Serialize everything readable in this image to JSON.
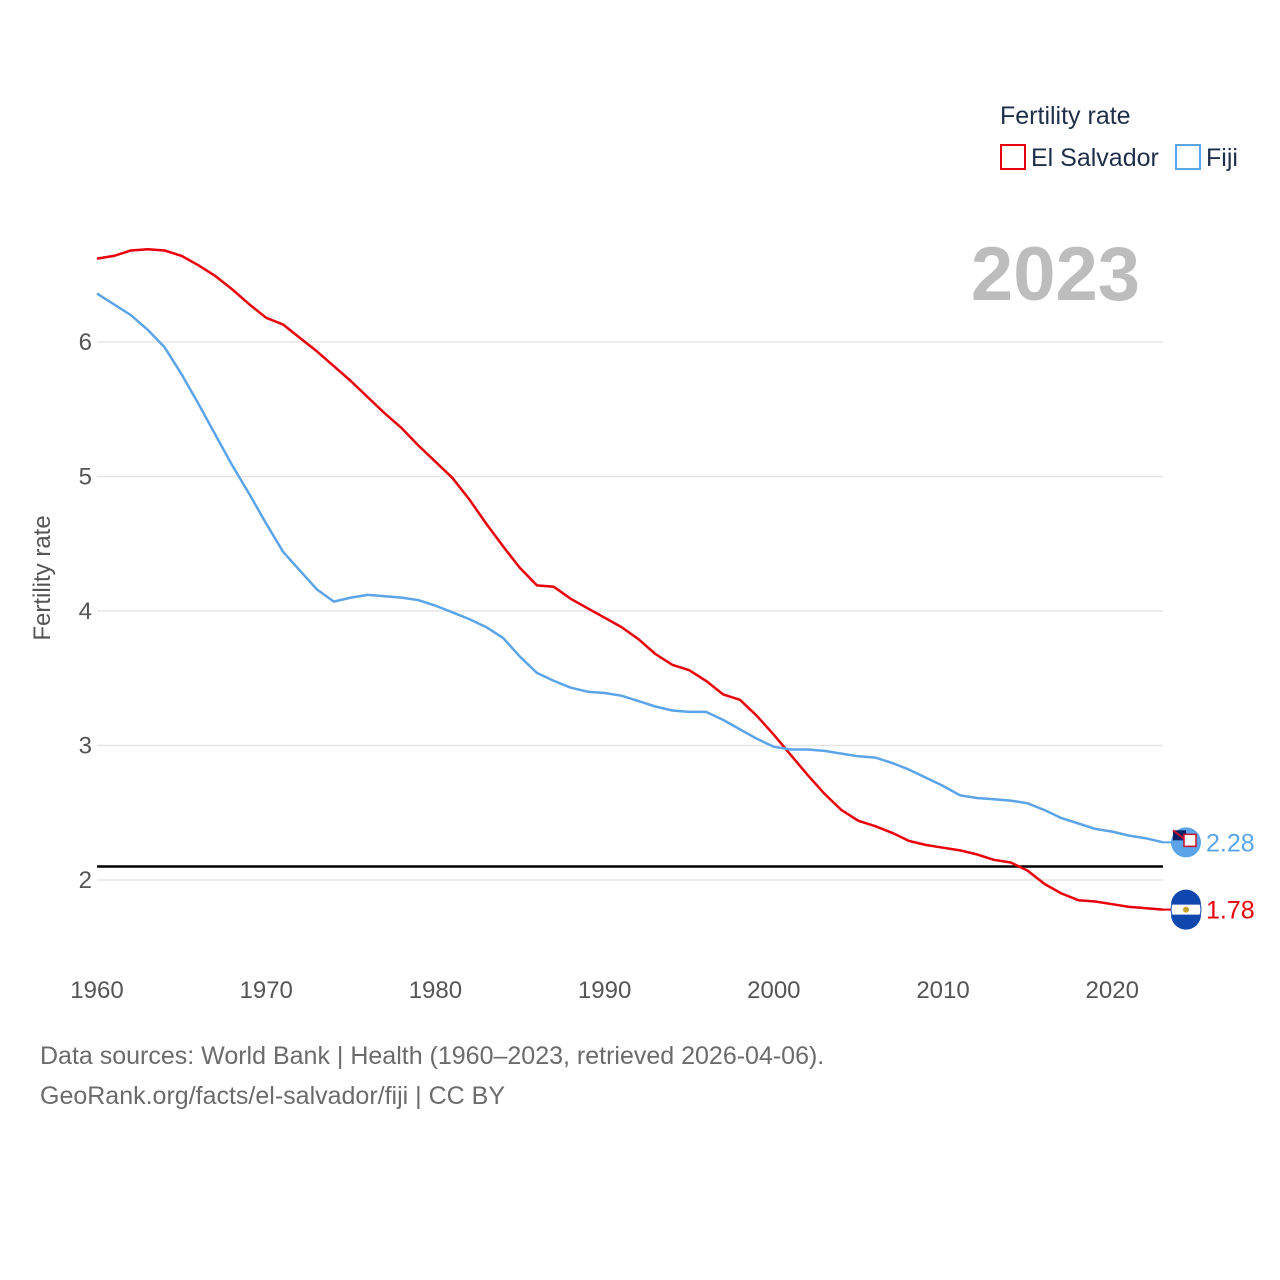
{
  "chart_data": {
    "type": "line",
    "title": "Fertility rate",
    "ylabel": "Fertility rate",
    "xlabel": "",
    "year_label": "2023",
    "xlim": [
      1960,
      2023
    ],
    "ylim": [
      1.5,
      6.8
    ],
    "x_ticks": [
      1960,
      1970,
      1980,
      1990,
      2000,
      2010,
      2020
    ],
    "y_ticks": [
      2,
      3,
      4,
      5,
      6
    ],
    "reference_line": 2.1,
    "grid": true,
    "legend": {
      "title": "Fertility rate",
      "position": "top-right"
    },
    "x": [
      1960,
      1961,
      1962,
      1963,
      1964,
      1965,
      1966,
      1967,
      1968,
      1969,
      1970,
      1971,
      1972,
      1973,
      1974,
      1975,
      1976,
      1977,
      1978,
      1979,
      1980,
      1981,
      1982,
      1983,
      1984,
      1985,
      1986,
      1987,
      1988,
      1989,
      1990,
      1991,
      1992,
      1993,
      1994,
      1995,
      1996,
      1997,
      1998,
      1999,
      2000,
      2001,
      2002,
      2003,
      2004,
      2005,
      2006,
      2007,
      2008,
      2009,
      2010,
      2011,
      2012,
      2013,
      2014,
      2015,
      2016,
      2017,
      2018,
      2019,
      2020,
      2021,
      2022,
      2023
    ],
    "series": [
      {
        "name": "El Salvador",
        "color": "#e8000b",
        "end_label": "1.78",
        "values": [
          6.62,
          6.64,
          6.68,
          6.69,
          6.68,
          6.64,
          6.57,
          6.49,
          6.39,
          6.28,
          6.18,
          6.13,
          6.03,
          5.93,
          5.82,
          5.71,
          5.59,
          5.47,
          5.36,
          5.23,
          5.11,
          4.99,
          4.83,
          4.65,
          4.48,
          4.32,
          4.19,
          4.18,
          4.09,
          4.02,
          3.95,
          3.88,
          3.79,
          3.68,
          3.6,
          3.56,
          3.48,
          3.38,
          3.34,
          3.22,
          3.08,
          2.93,
          2.78,
          2.64,
          2.52,
          2.44,
          2.4,
          2.35,
          2.29,
          2.26,
          2.24,
          2.22,
          2.19,
          2.15,
          2.13,
          2.07,
          1.97,
          1.9,
          1.85,
          1.84,
          1.82,
          1.8,
          1.79,
          1.78
        ]
      },
      {
        "name": "Fiji",
        "color": "#5ba4e8",
        "end_label": "2.28",
        "values": [
          6.36,
          6.28,
          6.2,
          6.09,
          5.96,
          5.76,
          5.54,
          5.31,
          5.08,
          4.87,
          4.65,
          4.44,
          4.3,
          4.16,
          4.07,
          4.1,
          4.12,
          4.11,
          4.1,
          4.08,
          4.04,
          3.99,
          3.94,
          3.88,
          3.8,
          3.66,
          3.54,
          3.48,
          3.43,
          3.4,
          3.39,
          3.37,
          3.33,
          3.29,
          3.26,
          3.25,
          3.25,
          3.19,
          3.12,
          3.05,
          2.99,
          2.97,
          2.97,
          2.96,
          2.94,
          2.92,
          2.91,
          2.87,
          2.82,
          2.76,
          2.7,
          2.63,
          2.61,
          2.6,
          2.59,
          2.57,
          2.52,
          2.46,
          2.42,
          2.38,
          2.36,
          2.33,
          2.31,
          2.28
        ]
      }
    ]
  },
  "footer": {
    "line1": "Data sources: World Bank | Health (1960–2023, retrieved 2026-04-06).",
    "line2": "GeoRank.org/facts/el-salvador/fiji | CC BY"
  },
  "icons": {
    "el_salvador_flag": "el-salvador-flag-icon",
    "fiji_flag": "fiji-flag-icon"
  }
}
